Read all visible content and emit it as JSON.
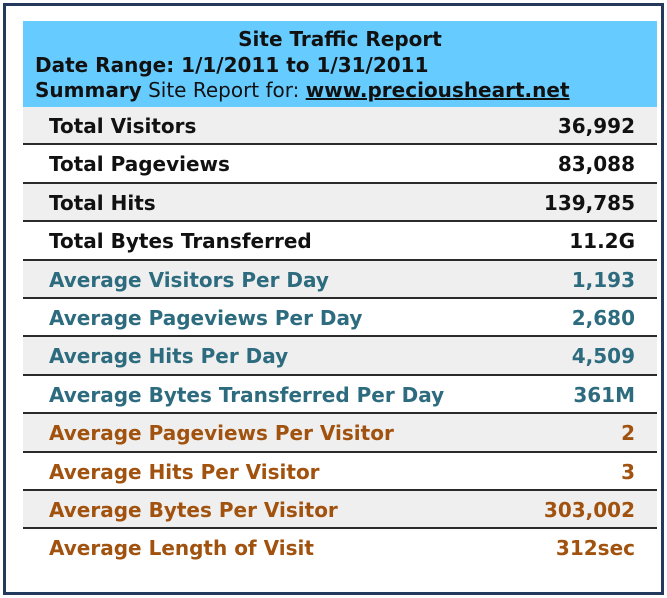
{
  "report": {
    "title": "Site Traffic Report",
    "date_range": "Date Range: 1/1/2011 to 1/31/2011",
    "summary_label": "Summary",
    "summary_text": " Site Report for: ",
    "site": "www.preciousheart.net"
  },
  "colors": {
    "header_bg": "#66ccff",
    "black": "#111111",
    "teal": "#2d6b7f",
    "brown": "#a0520e"
  },
  "rows": [
    {
      "label": "Total Visitors",
      "value": "36,992"
    },
    {
      "label": "Total Pageviews",
      "value": "83,088"
    },
    {
      "label": "Total Hits",
      "value": "139,785"
    },
    {
      "label": "Total Bytes Transferred",
      "value": "11.2G"
    },
    {
      "label": "Average Visitors Per Day",
      "value": "1,193"
    },
    {
      "label": "Average Pageviews Per Day",
      "value": "2,680"
    },
    {
      "label": "Average Hits Per Day",
      "value": "4,509"
    },
    {
      "label": "Average Bytes Transferred Per Day",
      "value": "361M"
    },
    {
      "label": "Average Pageviews Per Visitor",
      "value": "2"
    },
    {
      "label": "Average Hits Per Visitor",
      "value": "3"
    },
    {
      "label": "Average Bytes Per Visitor",
      "value": "303,002"
    },
    {
      "label": "Average Length of Visit",
      "value": "312sec"
    }
  ]
}
